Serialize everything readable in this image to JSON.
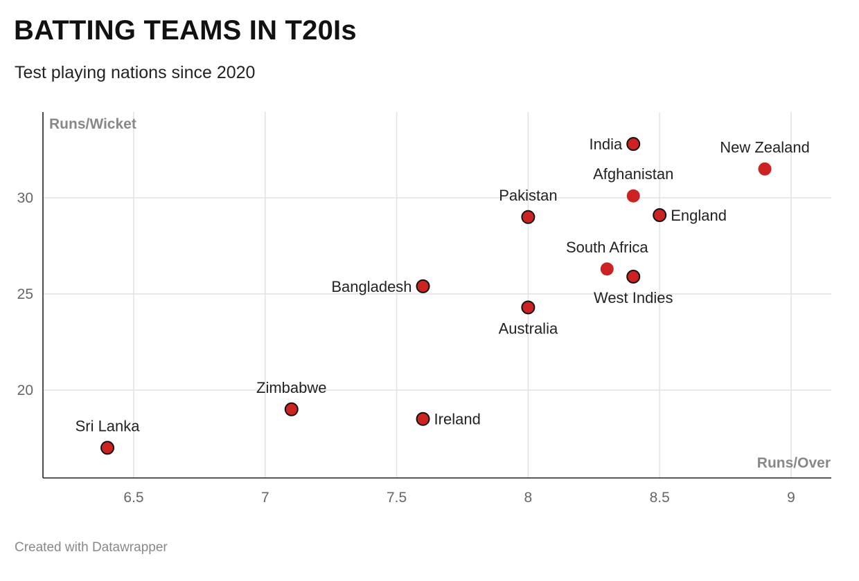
{
  "header": {
    "title": "BATTING TEAMS IN T20Is",
    "subtitle": "Test playing nations since 2020"
  },
  "footer": {
    "credit": "Created with Datawrapper"
  },
  "colors": {
    "point_fill": "#cc2222",
    "point_outline": "#111111",
    "grid": "#e2e2e2",
    "axis": "#222222"
  },
  "chart_data": {
    "type": "scatter",
    "title": "BATTING TEAMS IN T20Is",
    "subtitle": "Test playing nations since 2020",
    "xlabel": "Runs/Over",
    "ylabel": "Runs/Wicket",
    "xlim": [
      6.25,
      9.25
    ],
    "ylim": [
      15.5,
      34.5
    ],
    "x_ticks": [
      6.5,
      7,
      7.5,
      8,
      8.5,
      9
    ],
    "x_tick_labels": [
      "6.5",
      "7",
      "7.5",
      "8",
      "8.5",
      "9"
    ],
    "y_ticks": [
      20,
      25,
      30
    ],
    "y_tick_labels": [
      "20",
      "25",
      "30"
    ],
    "grid": true,
    "points": [
      {
        "label": "India",
        "x": 8.4,
        "y": 32.8,
        "outlined": true,
        "label_pos": "left"
      },
      {
        "label": "New Zealand",
        "x": 8.9,
        "y": 31.5,
        "outlined": false,
        "label_pos": "top"
      },
      {
        "label": "Afghanistan",
        "x": 8.4,
        "y": 30.1,
        "outlined": false,
        "label_pos": "top"
      },
      {
        "label": "England",
        "x": 8.5,
        "y": 29.1,
        "outlined": true,
        "label_pos": "right"
      },
      {
        "label": "Pakistan",
        "x": 8.0,
        "y": 29.0,
        "outlined": true,
        "label_pos": "top"
      },
      {
        "label": "South Africa",
        "x": 8.3,
        "y": 26.3,
        "outlined": false,
        "label_pos": "top"
      },
      {
        "label": "West Indies",
        "x": 8.4,
        "y": 25.9,
        "outlined": true,
        "label_pos": "bottom"
      },
      {
        "label": "Bangladesh",
        "x": 7.6,
        "y": 25.4,
        "outlined": true,
        "label_pos": "left"
      },
      {
        "label": "Australia",
        "x": 8.0,
        "y": 24.3,
        "outlined": true,
        "label_pos": "bottom"
      },
      {
        "label": "Zimbabwe",
        "x": 7.1,
        "y": 19.0,
        "outlined": true,
        "label_pos": "top"
      },
      {
        "label": "Ireland",
        "x": 7.6,
        "y": 18.5,
        "outlined": true,
        "label_pos": "right"
      },
      {
        "label": "Sri Lanka",
        "x": 6.4,
        "y": 17.0,
        "outlined": true,
        "label_pos": "top"
      }
    ]
  }
}
